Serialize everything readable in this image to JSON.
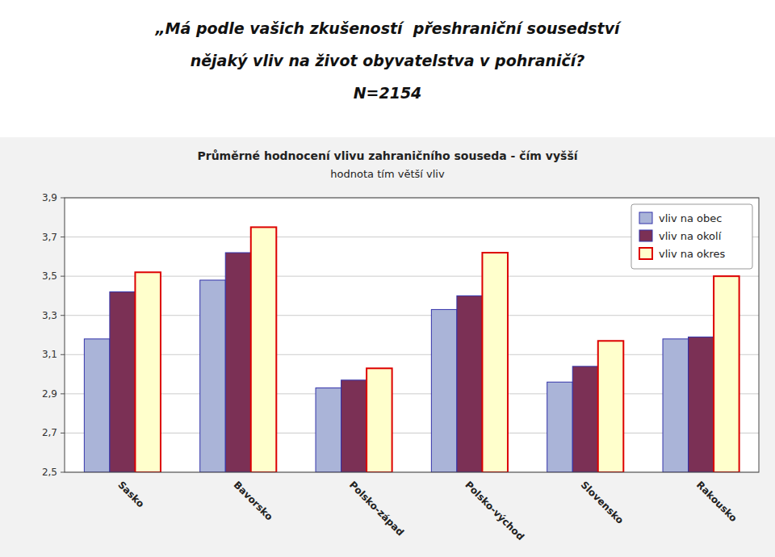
{
  "chart_data": {
    "type": "bar",
    "title": [
      "„Má podle vašich zkušeností  přeshraniční sousedství",
      "nějaký vliv na život obyvatelstva v pohraničí?",
      "N=2154"
    ],
    "subtitle": [
      "Průměrné hodnocení vlivu zahraničního souseda - čím vyšší",
      "hodnota tím větší vliv"
    ],
    "categories": [
      "Sasko",
      "Bavorsko",
      "Polsko-západ",
      "Polsko-východ",
      "Slovensko",
      "Rakousko"
    ],
    "series": [
      {
        "name": "vliv na obec",
        "color": "#aab4d8",
        "values": [
          3.18,
          3.48,
          2.93,
          3.33,
          2.96,
          3.18
        ]
      },
      {
        "name": "vliv na okolí",
        "color": "#7b3055",
        "values": [
          3.42,
          3.62,
          2.97,
          3.4,
          3.04,
          3.19
        ]
      },
      {
        "name": "vliv na okres",
        "color": "#ffffcc",
        "values": [
          3.52,
          3.75,
          3.03,
          3.62,
          3.17,
          3.5
        ]
      }
    ],
    "ylim": [
      2.5,
      3.9
    ],
    "yticks": [
      {
        "value": 2.5,
        "label": "2,5"
      },
      {
        "value": 2.7,
        "label": "2,7"
      },
      {
        "value": 2.9,
        "label": "2,9"
      },
      {
        "value": 3.1,
        "label": "3,1"
      },
      {
        "value": 3.3,
        "label": "3,3"
      },
      {
        "value": 3.5,
        "label": "3,5"
      },
      {
        "value": 3.7,
        "label": "3,7"
      },
      {
        "value": 3.9,
        "label": "3,9"
      }
    ],
    "grid": true,
    "legend": "upper right"
  }
}
